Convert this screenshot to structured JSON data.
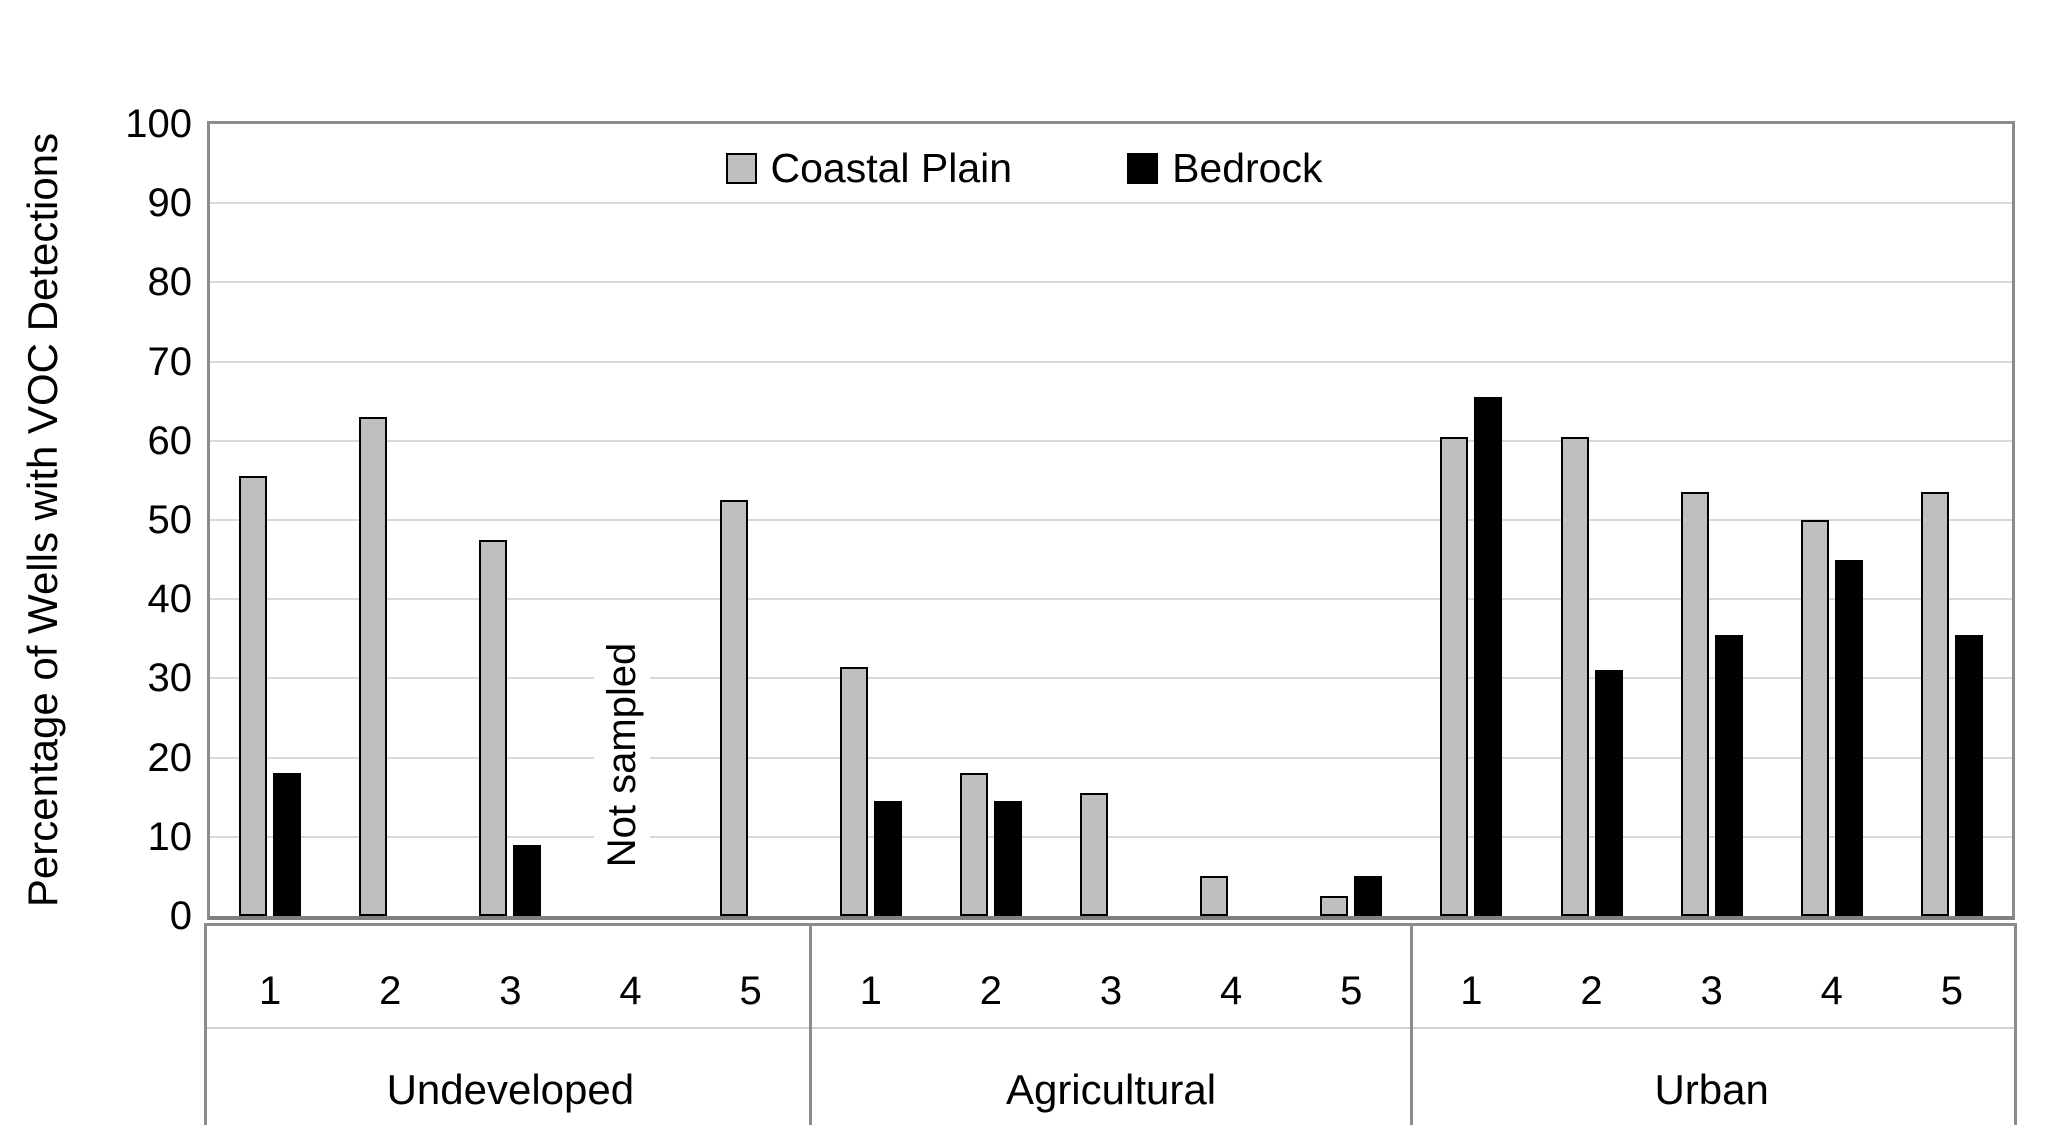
{
  "chart_data": {
    "type": "bar",
    "title": "",
    "ylabel": "Percentage of Wells with VOC Detections",
    "xlabel": "",
    "ylim": [
      0,
      100
    ],
    "ytick_interval": 10,
    "grid": true,
    "legend_position": "top-center-inside",
    "groups": [
      "Undeveloped",
      "Agricultural",
      "Urban"
    ],
    "categories_per_group": [
      "1",
      "2",
      "3",
      "4",
      "5"
    ],
    "series": [
      {
        "name": "Coastal Plain",
        "color": "#BFBFBF",
        "values": {
          "Undeveloped": [
            55.5,
            63,
            47.5,
            null,
            52.5
          ],
          "Agricultural": [
            31.5,
            18,
            15.5,
            5,
            2.5
          ],
          "Urban": [
            60.5,
            60.5,
            53.5,
            50,
            53.5
          ]
        }
      },
      {
        "name": "Bedrock",
        "color": "#000000",
        "values": {
          "Undeveloped": [
            18,
            0,
            9,
            null,
            0
          ],
          "Agricultural": [
            14.5,
            14.5,
            0,
            0,
            5
          ],
          "Urban": [
            65.5,
            31,
            35.5,
            45,
            35.5
          ]
        }
      }
    ],
    "annotation": {
      "text": "Not sampled",
      "group": "Undeveloped",
      "category": "4",
      "rotation_deg": -90
    },
    "colors": {
      "plot_border": "#8C8C8C",
      "gridline": "#D9D9D9",
      "text": "#000000",
      "background": "#FFFFFF"
    }
  }
}
